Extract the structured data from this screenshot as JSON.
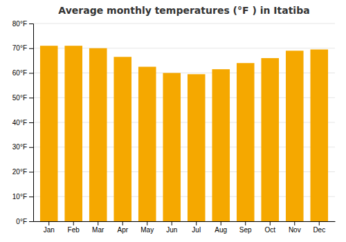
{
  "chart_data": {
    "type": "bar",
    "title": "Average monthly temperatures (°F ) in Itatiba",
    "categories": [
      "Jan",
      "Feb",
      "Mar",
      "Apr",
      "May",
      "Jun",
      "Jul",
      "Aug",
      "Sep",
      "Oct",
      "Nov",
      "Dec"
    ],
    "values": [
      71.0,
      71.0,
      70.0,
      66.5,
      62.5,
      60.0,
      59.5,
      61.5,
      64.0,
      66.0,
      69.0,
      69.5
    ],
    "color": "#F5A800",
    "ylim": [
      0,
      80
    ],
    "yticks": [
      {
        "value": 0,
        "label": "0°F"
      },
      {
        "value": 10,
        "label": "10°F"
      },
      {
        "value": 20,
        "label": "20°F"
      },
      {
        "value": 30,
        "label": "30°F"
      },
      {
        "value": 40,
        "label": "40°F"
      },
      {
        "value": 50,
        "label": "50°F"
      },
      {
        "value": 60,
        "label": "60°F"
      },
      {
        "value": 70,
        "label": "70°F"
      },
      {
        "value": 80,
        "label": "80°F"
      }
    ],
    "grid": true
  }
}
